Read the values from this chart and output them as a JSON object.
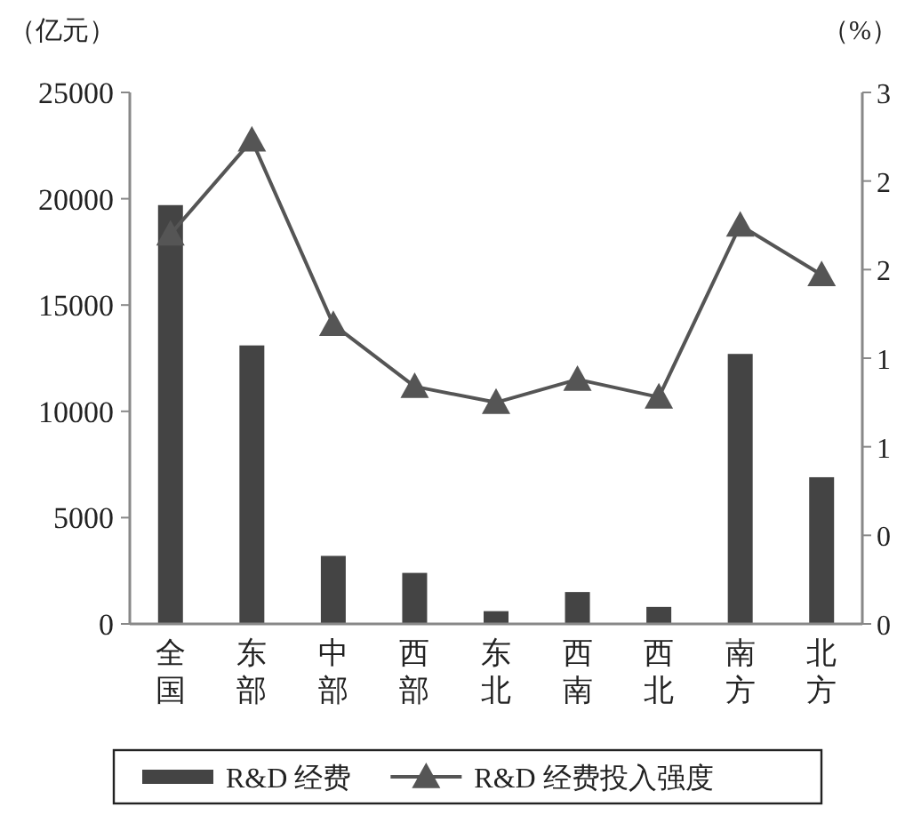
{
  "chart_data": {
    "type": "bar",
    "ylabel": "（亿元）",
    "y2label": "（%）",
    "categories": [
      "全国",
      "东部",
      "中部",
      "西部",
      "东北",
      "西南",
      "西北",
      "南方",
      "北方"
    ],
    "series": [
      {
        "name": "R&D 经费",
        "color": "#444444",
        "values": [
          19700,
          13100,
          3200,
          2400,
          600,
          1500,
          800,
          12700,
          6900
        ]
      },
      {
        "name": "R&D 经费投入强度",
        "type": "line",
        "axis": "y2",
        "marker": "triangle",
        "color": "#555555",
        "values": [
          2.2,
          2.73,
          1.69,
          1.34,
          1.25,
          1.38,
          1.28,
          2.25,
          1.97
        ]
      }
    ],
    "ylim": [
      0,
      25000
    ],
    "yticks": [
      0,
      5000,
      10000,
      15000,
      20000,
      25000
    ],
    "y2lim": [
      0,
      3
    ],
    "y2ticks": [
      0,
      {
        "value": 0.5,
        "label": "0"
      },
      1,
      {
        "value": 1.5,
        "label": "1"
      },
      2,
      {
        "value": 2.5,
        "label": "2"
      },
      3
    ],
    "grid": false,
    "legend": "bottom"
  }
}
